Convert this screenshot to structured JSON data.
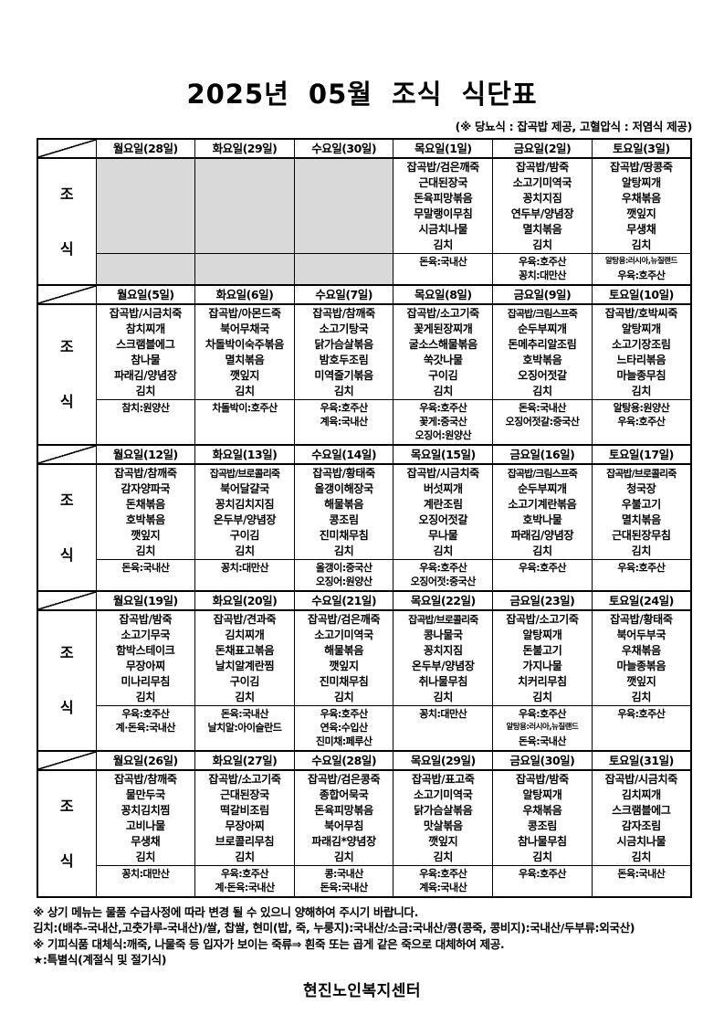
{
  "title": "2025년  05월  조식  식단표",
  "subtitle": "(※  당뇨식 : 잡곡밥 제공, 고혈압식 : 저염식 제공)",
  "meal_label": [
    "조",
    "식"
  ],
  "weeks": [
    {
      "days": [
        "월요일(28일)",
        "화요일(29일)",
        "수요일(30일)",
        "목요일(1일)",
        "금요일(2일)",
        "토요일(3일)"
      ],
      "cells": [
        {
          "empty": true,
          "menu": [],
          "origin": []
        },
        {
          "empty": true,
          "menu": [],
          "origin": []
        },
        {
          "empty": true,
          "menu": [],
          "origin": []
        },
        {
          "empty": false,
          "menu": [
            "잡곡밥/검은깨죽",
            "근대된장국",
            "돈육피망볶음",
            "무말랭이무침",
            "시금치나물",
            "김치"
          ],
          "origin": [
            "돈육:국내산"
          ]
        },
        {
          "empty": false,
          "menu": [
            "잡곡밥/밤죽",
            "소고기미역국",
            "꽁치지짐",
            "연두부/양념장",
            "멸치볶음",
            "김치"
          ],
          "origin": [
            "우육:호주산",
            "꽁치:대만산"
          ]
        },
        {
          "empty": false,
          "menu": [
            "잡곡밥/땅콩죽",
            "알탕찌개",
            "우채볶음",
            "깻잎지",
            "무생채",
            "김치"
          ],
          "origin": [
            "알탕용:러시아,뉴질랜드",
            "우육:호주산"
          ]
        }
      ]
    },
    {
      "days": [
        "월요일(5일)",
        "화요일(6일)",
        "수요일(7일)",
        "목요일(8일)",
        "금요일(9일)",
        "토요일(10일)"
      ],
      "cells": [
        {
          "empty": false,
          "menu": [
            "잡곡밥/시금치죽",
            "참치찌개",
            "스크램블에그",
            "참나물",
            "파래김/양념장",
            "김치"
          ],
          "origin": [
            "참치:원양산"
          ]
        },
        {
          "empty": false,
          "menu": [
            "잡곡밥/아몬드죽",
            "북어무채국",
            "차돌박이숙주볶음",
            "멸치볶음",
            "깻잎지",
            "김치"
          ],
          "origin": [
            "차돌박이:호주산"
          ]
        },
        {
          "empty": false,
          "menu": [
            "잡곡밥/참깨죽",
            "소고기탕국",
            "닭가슴살볶음",
            "밤호두조림",
            "미역줄기볶음",
            "김치"
          ],
          "origin": [
            "우육:호주산",
            "계육:국내산"
          ]
        },
        {
          "empty": false,
          "menu": [
            "잡곡밥/소고기죽",
            "꽃게된장찌개",
            "굴소스해물볶음",
            "쑥갓나물",
            "구이김",
            "김치"
          ],
          "origin": [
            "우육:호주산",
            "꽃게:중국산",
            "오징어:원양산"
          ]
        },
        {
          "empty": false,
          "menu": [
            "잡곡밥/크림스프죽",
            "순두부찌개",
            "돈메추리알조림",
            "호박볶음",
            "오징어젓갈",
            "김치"
          ],
          "origin": [
            "돈육:국내산",
            "오징어젓갈:중국산"
          ]
        },
        {
          "empty": false,
          "menu": [
            "잡곡밥/호박씨죽",
            "알탕찌개",
            "소고기장조림",
            "느타리볶음",
            "마늘종무침",
            "김치"
          ],
          "origin": [
            "알탕용:원양산",
            "우육:호주산"
          ]
        }
      ]
    },
    {
      "days": [
        "월요일(12일)",
        "화요일(13일)",
        "수요일(14일)",
        "목요일(15일)",
        "금요일(16일)",
        "토요일(17일)"
      ],
      "cells": [
        {
          "empty": false,
          "menu": [
            "잡곡밥/참깨죽",
            "감자양파국",
            "돈채볶음",
            "호박볶음",
            "깻잎지",
            "김치"
          ],
          "origin": [
            "돈육:국내산"
          ]
        },
        {
          "empty": false,
          "menu": [
            "잡곡밥/브로콜리죽",
            "북어달걀국",
            "꽁치김치지짐",
            "온두부/양념장",
            "구이김",
            "김치"
          ],
          "origin": [
            "꽁치:대만산"
          ]
        },
        {
          "empty": false,
          "menu": [
            "잡곡밥/황태죽",
            "올갱이해장국",
            "해물볶음",
            "콩조림",
            "진미채무침",
            "김치"
          ],
          "origin": [
            "올갱이:중국산",
            "오징어:원양산"
          ]
        },
        {
          "empty": false,
          "menu": [
            "잡곡밥/시금치죽",
            "버섯찌개",
            "계란조림",
            "오징어젓갈",
            "무나물",
            "김치"
          ],
          "origin": [
            "우육:호주산",
            "오징어젓:중국산"
          ]
        },
        {
          "empty": false,
          "menu": [
            "잡곡밥/크림스프죽",
            "순두부찌개",
            "소고기계란볶음",
            "호박나물",
            "파래김/양념장",
            "김치"
          ],
          "origin": [
            "우육:호주산"
          ]
        },
        {
          "empty": false,
          "menu": [
            "잡곡밥/브로콜리죽",
            "청국장",
            "우불고기",
            "멸치볶음",
            "근대된장무침",
            "김치"
          ],
          "origin": [
            "우육:호주산"
          ]
        }
      ]
    },
    {
      "days": [
        "월요일(19일)",
        "화요일(20일)",
        "수요일(21일)",
        "목요일(22일)",
        "금요일(23일)",
        "토요일(24일)"
      ],
      "cells": [
        {
          "empty": false,
          "menu": [
            "잡곡밥/밤죽",
            "소고기무국",
            "함박스테이크",
            "무장아찌",
            "미나리무침",
            "김치"
          ],
          "origin": [
            "우육:호주산",
            "계·돈육:국내산"
          ]
        },
        {
          "empty": false,
          "menu": [
            "잡곡밥/견과죽",
            "김치찌개",
            "돈채표고볶음",
            "날치알계란찜",
            "구이김",
            "김치"
          ],
          "origin": [
            "돈육:국내산",
            "날치알:아이슬란드"
          ]
        },
        {
          "empty": false,
          "menu": [
            "잡곡밥/검은깨죽",
            "소고기미역국",
            "해물볶음",
            "깻잎지",
            "진미채무침",
            "김치"
          ],
          "origin": [
            "우육:호주산",
            "연육:수입산",
            "진미채:페루산"
          ]
        },
        {
          "empty": false,
          "menu": [
            "잡곡밥/브로콜리죽",
            "콩나물국",
            "꽁치지짐",
            "온두부/양념장",
            "취나물무침",
            "김치"
          ],
          "origin": [
            "꽁치:대만산"
          ]
        },
        {
          "empty": false,
          "menu": [
            "잡곡밥/소고기죽",
            "알탕찌개",
            "돈불고기",
            "가지나물",
            "치커리무침",
            "김치"
          ],
          "origin": [
            "우육:호주산",
            "알탕용:러시아,뉴질랜드",
            "돈육:국내산"
          ]
        },
        {
          "empty": false,
          "menu": [
            "잡곡밥/황태죽",
            "북어두부국",
            "우채볶음",
            "마늘종볶음",
            "깻잎지",
            "김치"
          ],
          "origin": [
            "우육:호주산"
          ]
        }
      ]
    },
    {
      "days": [
        "월요일(26일)",
        "화요일(27일)",
        "수요일(28일)",
        "목요일(29일)",
        "금요일(30일)",
        "토요일(31일)"
      ],
      "cells": [
        {
          "empty": false,
          "menu": [
            "잡곡밥/참깨죽",
            "물만두국",
            "꽁치김치찜",
            "고비나물",
            "무생채",
            "김치"
          ],
          "origin": [
            "꽁치:대만산"
          ]
        },
        {
          "empty": false,
          "menu": [
            "잡곡밥/소고기죽",
            "근대된장국",
            "떡갈비조림",
            "무장아찌",
            "브로콜리무침",
            "김치"
          ],
          "origin": [
            "우육:호주산",
            "계·돈육:국내산"
          ]
        },
        {
          "empty": false,
          "menu": [
            "잡곡밥/검은콩죽",
            "종합어묵국",
            "돈육피망볶음",
            "북어무침",
            "파래김*양념장",
            "김치"
          ],
          "origin": [
            "콩:국내산",
            "돈육:국내산"
          ]
        },
        {
          "empty": false,
          "menu": [
            "잡곡밥/표고죽",
            "소고기미역국",
            "닭가슴살볶음",
            "맛살볶음",
            "깻잎지",
            "김치"
          ],
          "origin": [
            "우육:호주산",
            "계육:국내산"
          ]
        },
        {
          "empty": false,
          "menu": [
            "잡곡밥/밤죽",
            "알탕찌개",
            "우채볶음",
            "콩조림",
            "참나물무침",
            "김치"
          ],
          "origin": [
            "우육:호주산"
          ]
        },
        {
          "empty": false,
          "menu": [
            "잡곡밥/시금치죽",
            "김치찌개",
            "스크램블에그",
            "감자조림",
            "시금치나물",
            "김치"
          ],
          "origin": [
            "돈육:국내산"
          ]
        }
      ]
    }
  ],
  "notes": [
    "※ 상기 메뉴는 물품 수급사정에 따라 변경 될 수 있으니 양해하여 주시기 바랍니다.",
    "김치:(배추-국내산,고춧가루-국내산)/쌀, 찹쌀, 현미(밥, 죽, 누룽지):국내산/소금:국내산/콩(콩죽, 콩비지):국내산/두부류:외국산)",
    "※ 기피식품 대체식:깨죽, 나물죽 등 입자가 보이는 죽류⇒ 흰죽 또는 곱게 같은 죽으로 대체하여 제공.",
    "★:특별식(계절식 및 절기식)"
  ],
  "organization": "현진노인복지센터",
  "colors": {
    "empty_cell": "#d9d9d9",
    "border": "#000000",
    "text": "#000000",
    "background": "#ffffff"
  }
}
